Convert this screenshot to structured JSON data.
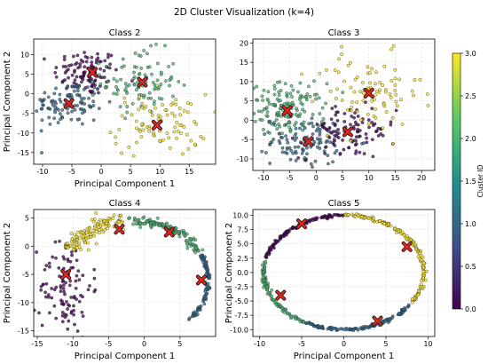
{
  "title": "2D Cluster Visualization (k=4)",
  "colorbar": {
    "label": "Cluster ID",
    "ticks": [
      "0.0",
      "0.5",
      "1.0",
      "1.5",
      "2.0",
      "2.5",
      "3.0"
    ],
    "colormap": [
      "#440154",
      "#3b528b",
      "#21918c",
      "#5ec962",
      "#fde725"
    ]
  },
  "centroid_color": "#e0261e",
  "chart_data": [
    {
      "type": "scatter",
      "title": "Class 2",
      "xlabel": "Principal Component 1",
      "ylabel": "Principal Component 2",
      "xlim": [
        -11.5,
        19.5
      ],
      "ylim": [
        -18,
        14
      ],
      "xticks": [
        -10,
        -5,
        0,
        5,
        10,
        15
      ],
      "yticks": [
        -15,
        -10,
        -5,
        0,
        5,
        10
      ],
      "grid": true,
      "centroids": [
        [
          -1.5,
          5.5
        ],
        [
          7,
          3
        ],
        [
          -5.5,
          -2.5
        ],
        [
          9.5,
          -8
        ]
      ],
      "clusters": [
        {
          "id": 0,
          "cx": -2.5,
          "cy": 5.5,
          "sx": 2.8,
          "sy": 3.0,
          "n": 110
        },
        {
          "id": 1,
          "cx": -5.5,
          "cy": -2.5,
          "sx": 3.0,
          "sy": 3.0,
          "n": 110
        },
        {
          "id": 2,
          "cx": 6.5,
          "cy": 3,
          "sx": 3.2,
          "sy": 4.0,
          "n": 100
        },
        {
          "id": 3,
          "cx": 10,
          "cy": -8,
          "sx": 4.0,
          "sy": 4.0,
          "n": 90
        }
      ]
    },
    {
      "type": "scatter",
      "title": "Class 3",
      "xlabel": "",
      "ylabel": "",
      "xlim": [
        -12,
        22.5
      ],
      "ylim": [
        -13,
        21
      ],
      "xticks": [
        -10,
        -5,
        0,
        5,
        10,
        15,
        20
      ],
      "yticks": [
        -10,
        -5,
        0,
        5,
        10,
        15,
        20
      ],
      "grid": true,
      "centroids": [
        [
          -5.5,
          2.5
        ],
        [
          -1.5,
          -5.5
        ],
        [
          6,
          -3
        ],
        [
          10,
          7
        ]
      ],
      "clusters": [
        {
          "id": 2,
          "cx": -5.5,
          "cy": 2.5,
          "sx": 3.5,
          "sy": 3.5,
          "n": 150
        },
        {
          "id": 1,
          "cx": -1.5,
          "cy": -5.5,
          "sx": 3.5,
          "sy": 3.0,
          "n": 110
        },
        {
          "id": 0,
          "cx": 6,
          "cy": -3,
          "sx": 4.5,
          "sy": 3.5,
          "n": 100
        },
        {
          "id": 3,
          "cx": 10,
          "cy": 7,
          "sx": 5.0,
          "sy": 5.0,
          "n": 90
        }
      ]
    },
    {
      "type": "scatter",
      "title": "Class 4",
      "xlabel": "Principal Component 1",
      "ylabel": "Principal Component 2",
      "xlim": [
        -15.5,
        10
      ],
      "ylim": [
        -16,
        6.5
      ],
      "xticks": [
        -15,
        -10,
        -5,
        0,
        5
      ],
      "yticks": [
        -15,
        -10,
        -5,
        0,
        5
      ],
      "grid": true,
      "centroids": [
        [
          -11,
          -5
        ],
        [
          -3.5,
          3
        ],
        [
          3.5,
          2.5
        ],
        [
          8,
          -6
        ]
      ],
      "arc": {
        "cx": -1.5,
        "cy": -6,
        "r": 10.5
      },
      "clusters": [
        {
          "id": 0,
          "cx": -11,
          "cy": -7,
          "sx": 1.8,
          "sy": 4.5,
          "n": 110
        },
        {
          "id": 3,
          "a0": 2.6,
          "a1": 1.7,
          "rs": 0.8,
          "n": 120
        },
        {
          "id": 2,
          "a0": 1.65,
          "a1": 0.5,
          "rs": 0.45,
          "n": 130
        },
        {
          "id": 1,
          "a0": 0.45,
          "a1": -0.75,
          "rs": 0.2,
          "n": 90
        }
      ]
    },
    {
      "type": "scatter",
      "title": "Class 5",
      "xlabel": "Principal Component 1",
      "ylabel": "Principal Component 2",
      "xlim": [
        -10.8,
        10.8
      ],
      "ylim": [
        -11.2,
        11
      ],
      "xticks": [
        -10,
        -5,
        0,
        5,
        10
      ],
      "yticks": [
        -10.0,
        -7.5,
        -5.0,
        -2.5,
        0.0,
        2.5,
        5.0,
        7.5,
        10.0
      ],
      "grid": true,
      "centroids": [
        [
          -5,
          8.5
        ],
        [
          7.5,
          4.5
        ],
        [
          -7.5,
          -4
        ],
        [
          4,
          -8.5
        ]
      ],
      "ellipse": {
        "rx": 9.5,
        "ry": 10
      },
      "clusters": [
        {
          "id": 3,
          "a0": -0.6,
          "a1": 1.6,
          "n": 160
        },
        {
          "id": 0,
          "a0": 1.6,
          "a1": 2.9,
          "n": 110
        },
        {
          "id": 2,
          "a0": 2.9,
          "a1": 4.2,
          "n": 110
        },
        {
          "id": 1,
          "a0": 4.2,
          "a1": 5.68,
          "n": 130
        }
      ]
    }
  ]
}
